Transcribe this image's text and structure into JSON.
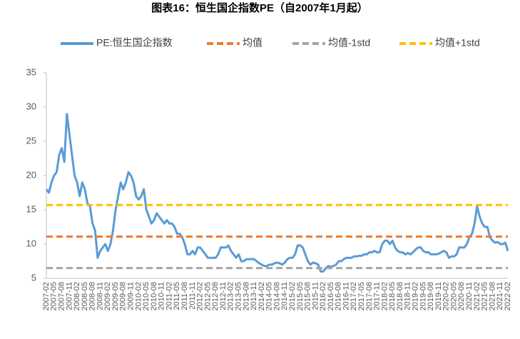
{
  "chart_data": {
    "type": "line",
    "title": "图表16：恒生国企指数PE（自2007年1月起）",
    "categories": [
      "2007-02",
      null,
      null,
      "2007-05",
      null,
      null,
      "2007-08",
      null,
      null,
      "2007-11",
      null,
      null,
      "2008-02",
      null,
      null,
      "2008-05",
      null,
      null,
      "2008-08",
      null,
      null,
      "2008-11",
      null,
      null,
      "2009-02",
      null,
      null,
      "2009-05",
      null,
      null,
      "2009-08",
      null,
      null,
      "2009-11",
      null,
      null,
      "2010-02",
      null,
      null,
      "2010-05",
      null,
      null,
      "2010-08",
      null,
      null,
      "2010-11",
      null,
      null,
      "2011-02",
      null,
      null,
      "2011-05",
      null,
      null,
      "2011-08",
      null,
      null,
      "2011-11",
      null,
      null,
      "2012-02",
      null,
      null,
      "2012-05",
      null,
      null,
      "2012-08",
      null,
      null,
      "2012-11",
      null,
      null,
      "2013-02",
      null,
      null,
      "2013-05",
      null,
      null,
      "2013-08",
      null,
      null,
      "2013-11",
      null,
      null,
      "2014-02",
      null,
      null,
      "2014-05",
      null,
      null,
      "2014-08",
      null,
      null,
      "2014-11",
      null,
      null,
      "2015-02",
      null,
      null,
      "2015-05",
      null,
      null,
      "2015-08",
      null,
      null,
      "2015-11",
      null,
      null,
      "2016-02",
      null,
      null,
      "2016-05",
      null,
      null,
      "2016-08",
      null,
      null,
      "2016-11",
      null,
      null,
      "2017-02",
      null,
      null,
      "2017-05",
      null,
      null,
      "2017-08",
      null,
      null,
      "2017-11",
      null,
      null,
      "2018-02",
      null,
      null,
      "2018-05",
      null,
      null,
      "2018-08",
      null,
      null,
      "2018-11",
      null,
      null,
      "2019-02",
      null,
      null,
      "2019-05",
      null,
      null,
      "2019-08",
      null,
      null,
      "2019-11",
      null,
      null,
      "2020-02",
      null,
      null,
      "2020-05",
      null,
      null,
      "2020-08",
      null,
      null,
      "2020-11",
      null,
      null,
      "2021-02",
      null,
      null,
      "2021-05",
      null,
      null,
      "2021-08",
      null,
      null,
      "2021-11",
      null,
      null,
      "2022-02"
    ],
    "series": [
      {
        "name": "PE:恒生国企指数",
        "color": "#5b9bd5",
        "values": [
          18,
          17.5,
          19,
          20,
          20.5,
          23,
          24,
          22,
          29,
          26,
          23,
          20,
          19,
          17,
          19,
          18,
          16,
          15.5,
          13,
          12,
          8,
          9,
          9.5,
          10,
          9,
          10,
          12,
          15,
          17,
          19,
          18,
          19,
          20.5,
          20,
          19,
          17,
          16.5,
          17,
          18,
          15,
          14,
          13,
          13.5,
          14.5,
          14,
          13.5,
          13,
          13.5,
          13,
          13,
          12.5,
          11.5,
          11.5,
          11,
          10,
          8.5,
          8.5,
          9,
          8.5,
          9.5,
          9.5,
          9,
          8.5,
          8,
          8,
          8,
          8,
          8.5,
          9.5,
          9.5,
          9.5,
          9.8,
          9,
          8.5,
          8,
          8.5,
          7.5,
          7.5,
          7.8,
          7.8,
          7.8,
          7.8,
          7.5,
          7.2,
          7,
          6.8,
          6.8,
          7,
          7,
          7.2,
          7.3,
          7.2,
          7,
          7.3,
          7.8,
          8,
          8,
          8.5,
          9.8,
          9.8,
          9.5,
          8.5,
          7.5,
          7,
          7.3,
          7.2,
          7,
          6,
          6,
          6.5,
          6.8,
          6.7,
          6.8,
          7,
          7.5,
          7.5,
          7.8,
          8,
          8,
          8,
          8.2,
          8.2,
          8.3,
          8.3,
          8.5,
          8.5,
          8.8,
          8.8,
          9,
          8.8,
          8.8,
          10,
          10.5,
          10.5,
          10,
          10.5,
          9.5,
          9,
          8.8,
          8.8,
          8.5,
          8.7,
          8.5,
          8.8,
          9.2,
          9.5,
          9.5,
          9,
          8.8,
          8.8,
          8.5,
          8.5,
          8.5,
          8.6,
          8.8,
          9,
          8.8,
          8,
          8.2,
          8.2,
          8.5,
          9.5,
          9.5,
          9.5,
          10,
          11,
          11.5,
          13,
          15.5,
          14,
          13,
          12.5,
          12.5,
          11,
          10.5,
          10.2,
          10.3,
          10,
          10,
          10.2,
          9
        ]
      },
      {
        "name": "均值",
        "color": "#ed7d31",
        "value": 11.1
      },
      {
        "name": "均值-1std",
        "color": "#a5a5a5",
        "value": 6.5
      },
      {
        "name": "均值+1std",
        "color": "#ffc000",
        "value": 15.7
      }
    ],
    "ylim": [
      5,
      35
    ],
    "yticks": [
      5,
      10,
      15,
      20,
      25,
      30,
      35
    ]
  }
}
